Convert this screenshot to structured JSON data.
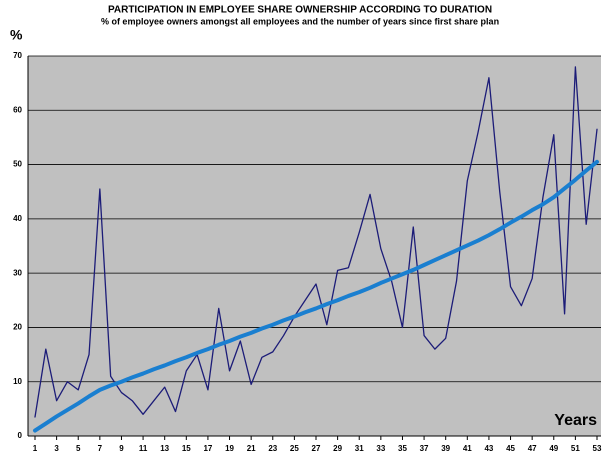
{
  "chart_data": {
    "type": "line",
    "title": "PARTICIPATION IN EMPLOYEE SHARE OWNERSHIP ACCORDING TO DURATION",
    "subtitle": "% of employee owners amongst all employees and the number of years since first share plan",
    "y_label": "%",
    "x_label": "Years",
    "x": [
      1,
      2,
      3,
      4,
      5,
      6,
      7,
      8,
      9,
      10,
      11,
      12,
      13,
      14,
      15,
      16,
      17,
      18,
      19,
      20,
      21,
      22,
      23,
      24,
      25,
      26,
      27,
      28,
      29,
      30,
      31,
      32,
      33,
      34,
      35,
      36,
      37,
      38,
      39,
      40,
      41,
      42,
      43,
      44,
      45,
      46,
      47,
      48,
      49,
      50,
      51,
      52,
      53
    ],
    "series": [
      {
        "color": "#1c1c78",
        "width": 1.3,
        "values": [
          3.5,
          16,
          6.5,
          10,
          8.5,
          15,
          45.5,
          11,
          8,
          6.5,
          4,
          6.5,
          9,
          4.5,
          12,
          15,
          8.5,
          23.5,
          12,
          17.5,
          9.5,
          14.5,
          15.5,
          18.5,
          22,
          25,
          28,
          20.5,
          30.5,
          31,
          37.5,
          44.5,
          34.5,
          28.5,
          20,
          38.5,
          18.5,
          16,
          18,
          28.5,
          47,
          56,
          66,
          45,
          27.5,
          24,
          29,
          44,
          55.5,
          22.5,
          68,
          39,
          56.5
        ]
      },
      {
        "color": "#1a7fd0",
        "width": 4,
        "values": [
          1,
          2.3,
          3.6,
          4.8,
          6,
          7.3,
          8.5,
          9.3,
          10,
          10.8,
          11.5,
          12.3,
          13,
          13.8,
          14.5,
          15.3,
          16,
          16.8,
          17.5,
          18.3,
          19,
          19.8,
          20.5,
          21.3,
          22,
          22.8,
          23.5,
          24.3,
          25,
          25.8,
          26.5,
          27.3,
          28.2,
          29,
          29.8,
          30.6,
          31.5,
          32.4,
          33.3,
          34.2,
          35.1,
          36,
          37,
          38.1,
          39.3,
          40.4,
          41.6,
          42.7,
          44,
          45.6,
          47.2,
          48.9,
          50.5
        ]
      }
    ],
    "xlim": [
      1,
      53
    ],
    "xticks": [
      1,
      3,
      5,
      7,
      9,
      11,
      13,
      15,
      17,
      19,
      21,
      23,
      25,
      27,
      29,
      31,
      33,
      35,
      37,
      39,
      41,
      43,
      45,
      47,
      49,
      51,
      53
    ],
    "ylim": [
      0,
      70
    ],
    "yticks": [
      0,
      10,
      20,
      30,
      40,
      50,
      60,
      70
    ],
    "grid": true,
    "plot_background": "#c0c0c0"
  }
}
